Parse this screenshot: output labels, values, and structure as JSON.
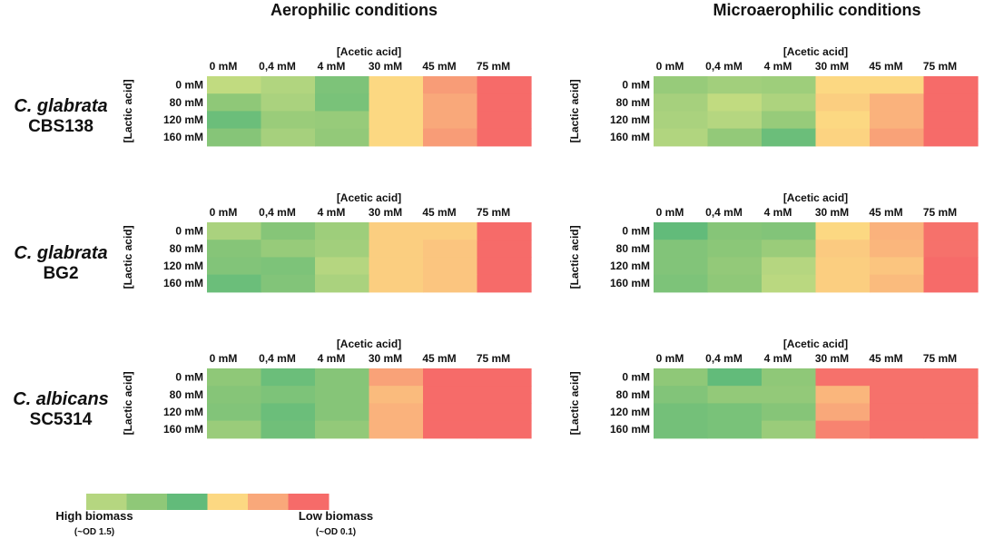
{
  "conditions": [
    "Aerophilic conditions",
    "Microaerophilic conditions"
  ],
  "organisms": [
    {
      "name": "C. glabrata",
      "strain": "CBS138"
    },
    {
      "name": "C. glabrata",
      "strain": "BG2"
    },
    {
      "name": "C. albicans",
      "strain": "SC5314"
    }
  ],
  "legend": {
    "colors": [
      "#b5d680",
      "#8fc878",
      "#62bb7a",
      "#fcd882",
      "#f9a87a",
      "#f66b69"
    ],
    "high_label": "High biomass",
    "high_sub": "(~OD 1.5)",
    "low_label": "Low biomass",
    "low_sub": "(~OD 0.1)"
  },
  "chart_data": {
    "type": "heatmap",
    "value_description": "biomass level on legend color scale (0 = highest biomass, 5 = lowest biomass)",
    "xlabel": "[Acetic acid]",
    "ylabel": "[Lactic acid]",
    "x_categories": [
      "0 mM",
      "0,4 mM",
      "4 mM",
      "30 mM",
      "45 mM",
      "75 mM"
    ],
    "y_categories": [
      "0 mM",
      "80 mM",
      "120 mM",
      "160 mM"
    ],
    "panels": [
      {
        "organism": "C. glabrata",
        "strain": "CBS138",
        "condition": "Aerophilic conditions",
        "values": [
          [
            -0.5,
            0.1,
            1.4,
            3.0,
            4.2,
            5.0
          ],
          [
            1.0,
            0.3,
            1.5,
            3.0,
            4.0,
            5.0
          ],
          [
            1.8,
            0.7,
            0.8,
            3.0,
            4.0,
            5.0
          ],
          [
            1.2,
            0.4,
            0.9,
            3.0,
            4.2,
            5.0
          ]
        ]
      },
      {
        "organism": "C. glabrata",
        "strain": "CBS138",
        "condition": "Microaerophilic conditions",
        "values": [
          [
            0.8,
            0.5,
            0.6,
            3.0,
            3.0,
            5.0
          ],
          [
            0.4,
            -0.5,
            0.2,
            3.2,
            3.8,
            5.0
          ],
          [
            0.3,
            0.0,
            0.8,
            3.0,
            3.8,
            5.0
          ],
          [
            0.1,
            0.9,
            1.8,
            3.1,
            4.1,
            5.0
          ]
        ]
      },
      {
        "organism": "C. glabrata",
        "strain": "BG2",
        "condition": "Aerophilic conditions",
        "values": [
          [
            0.3,
            1.2,
            0.6,
            3.2,
            3.2,
            5.0
          ],
          [
            1.2,
            0.8,
            0.5,
            3.2,
            3.4,
            5.0
          ],
          [
            1.3,
            1.4,
            0.0,
            3.2,
            3.4,
            5.0
          ],
          [
            1.8,
            1.3,
            0.3,
            3.2,
            3.4,
            5.0
          ]
        ]
      },
      {
        "organism": "C. glabrata",
        "strain": "BG2",
        "condition": "Microaerophilic conditions",
        "values": [
          [
            2.0,
            1.2,
            1.3,
            3.0,
            3.8,
            4.9
          ],
          [
            1.3,
            1.1,
            0.7,
            3.3,
            3.7,
            4.9
          ],
          [
            1.3,
            0.9,
            0.0,
            3.2,
            3.4,
            5.0
          ],
          [
            1.4,
            1.0,
            -0.2,
            3.2,
            3.6,
            5.0
          ]
        ]
      },
      {
        "organism": "C. albicans",
        "strain": "SC5314",
        "condition": "Aerophilic conditions",
        "values": [
          [
            1.0,
            1.8,
            1.2,
            4.1,
            5.0,
            5.0
          ],
          [
            1.2,
            1.4,
            1.2,
            3.6,
            5.0,
            5.0
          ],
          [
            1.3,
            1.8,
            1.2,
            3.8,
            5.0,
            5.0
          ],
          [
            0.7,
            1.7,
            0.9,
            3.8,
            5.0,
            5.0
          ]
        ]
      },
      {
        "organism": "C. albicans",
        "strain": "SC5314",
        "condition": "Microaerophilic conditions",
        "values": [
          [
            1.0,
            2.0,
            1.0,
            4.9,
            4.9,
            4.9
          ],
          [
            1.3,
            0.9,
            0.9,
            3.7,
            4.9,
            4.9
          ],
          [
            1.6,
            1.5,
            1.2,
            4.0,
            4.9,
            4.9
          ],
          [
            1.6,
            1.5,
            0.7,
            4.6,
            4.9,
            4.9
          ]
        ]
      }
    ]
  }
}
